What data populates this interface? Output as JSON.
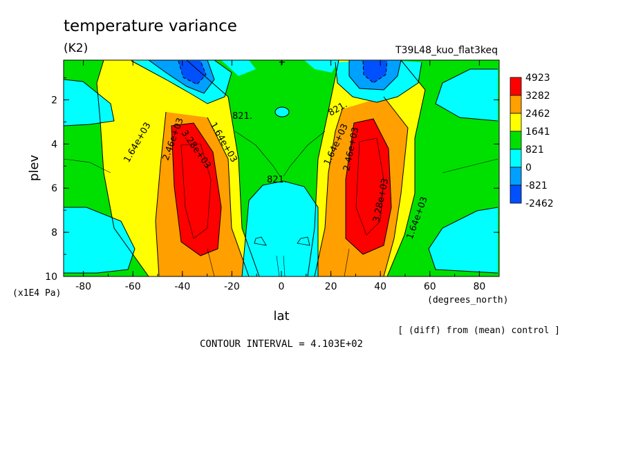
{
  "chart_data": {
    "type": "contour",
    "title": "temperature variance",
    "units": "(K2)",
    "run_label": "T39L48_kuo_flat3keq",
    "xlabel": "lat",
    "x_units": "(degrees_north)",
    "ylabel": "plev",
    "y_units": "(x1E4 Pa)",
    "x_ticks": [
      "-80",
      "-60",
      "-40",
      "-20",
      "0",
      "20",
      "40",
      "60",
      "80"
    ],
    "y_ticks": [
      "2",
      "4",
      "6",
      "8",
      "10"
    ],
    "xlim": [
      -88,
      88
    ],
    "ylim": [
      0.2,
      10
    ],
    "footer_note": "[ (diff) from (mean) control ]",
    "contour_interval": "CONTOUR INTERVAL = 4.103E+02",
    "colorbar": {
      "labels": [
        "4923",
        "3282",
        "2462",
        "1641",
        "821",
        "0",
        "-821",
        "-2462"
      ],
      "colors": [
        "#ff0000",
        "#ff9f00",
        "#ffff00",
        "#00e000",
        "#00ffff",
        "#00a0ff",
        "#0050ff"
      ]
    },
    "contour_labels": [
      "821.",
      "821.",
      "821.",
      "1.64e+03",
      "2.46e+03",
      "3.28e+03",
      "1.64e+03",
      "1.64e+03",
      "2.46e+03",
      "3.28e+03",
      "1.64e+03"
    ]
  }
}
